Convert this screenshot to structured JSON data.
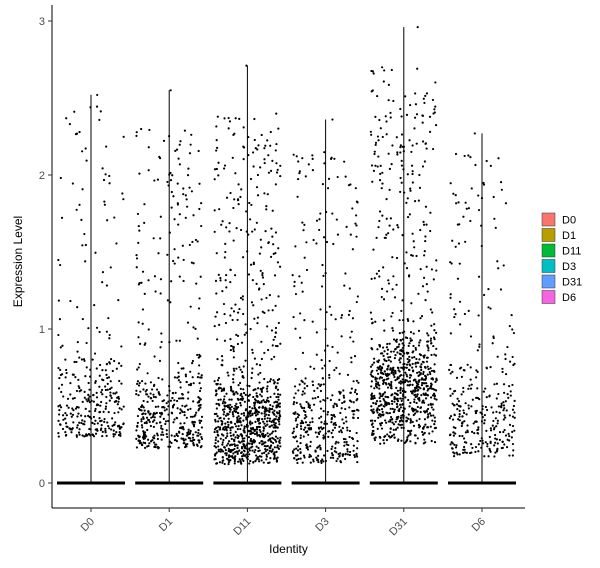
{
  "chart_data": {
    "type": "scatter",
    "subtype": "violin-jitter",
    "title": "",
    "xlabel": "Identity",
    "ylabel": "Expression Level",
    "categories": [
      "D0",
      "D1",
      "D11",
      "D3",
      "D31",
      "D6"
    ],
    "ylim": [
      -0.15,
      3.05
    ],
    "yticks": [
      0,
      1,
      2,
      3
    ],
    "ytick_labels": [
      "0",
      "1",
      "2",
      "3"
    ],
    "grid": false,
    "legend": {
      "position": "right",
      "entries": [
        {
          "name": "D0",
          "color": "#F8766D"
        },
        {
          "name": "D1",
          "color": "#B79F00"
        },
        {
          "name": "D11",
          "color": "#00BA38"
        },
        {
          "name": "D3",
          "color": "#00BFC4"
        },
        {
          "name": "D31",
          "color": "#619CFF"
        },
        {
          "name": "D6",
          "color": "#F564E3"
        }
      ]
    },
    "series": [
      {
        "category": "D0",
        "max": 2.52,
        "zero_band": true,
        "nonzero_points": 320,
        "density_peak": 0.45,
        "density_low": 0.3,
        "density_high": 2.45
      },
      {
        "category": "D1",
        "max": 2.55,
        "zero_band": true,
        "nonzero_points": 470,
        "density_peak": 0.4,
        "density_low": 0.22,
        "density_high": 2.3
      },
      {
        "category": "D11",
        "max": 2.71,
        "zero_band": true,
        "nonzero_points": 920,
        "density_peak": 0.38,
        "density_low": 0.12,
        "density_high": 2.4
      },
      {
        "category": "D3",
        "max": 2.36,
        "zero_band": true,
        "nonzero_points": 420,
        "density_peak": 0.35,
        "density_low": 0.13,
        "density_high": 2.15
      },
      {
        "category": "D31",
        "max": 2.96,
        "zero_band": true,
        "nonzero_points": 900,
        "density_peak": 0.6,
        "density_low": 0.25,
        "density_high": 2.7
      },
      {
        "category": "D6",
        "max": 2.27,
        "zero_band": true,
        "nonzero_points": 330,
        "density_peak": 0.4,
        "density_low": 0.17,
        "density_high": 2.15
      }
    ],
    "point_color": "#000000"
  }
}
